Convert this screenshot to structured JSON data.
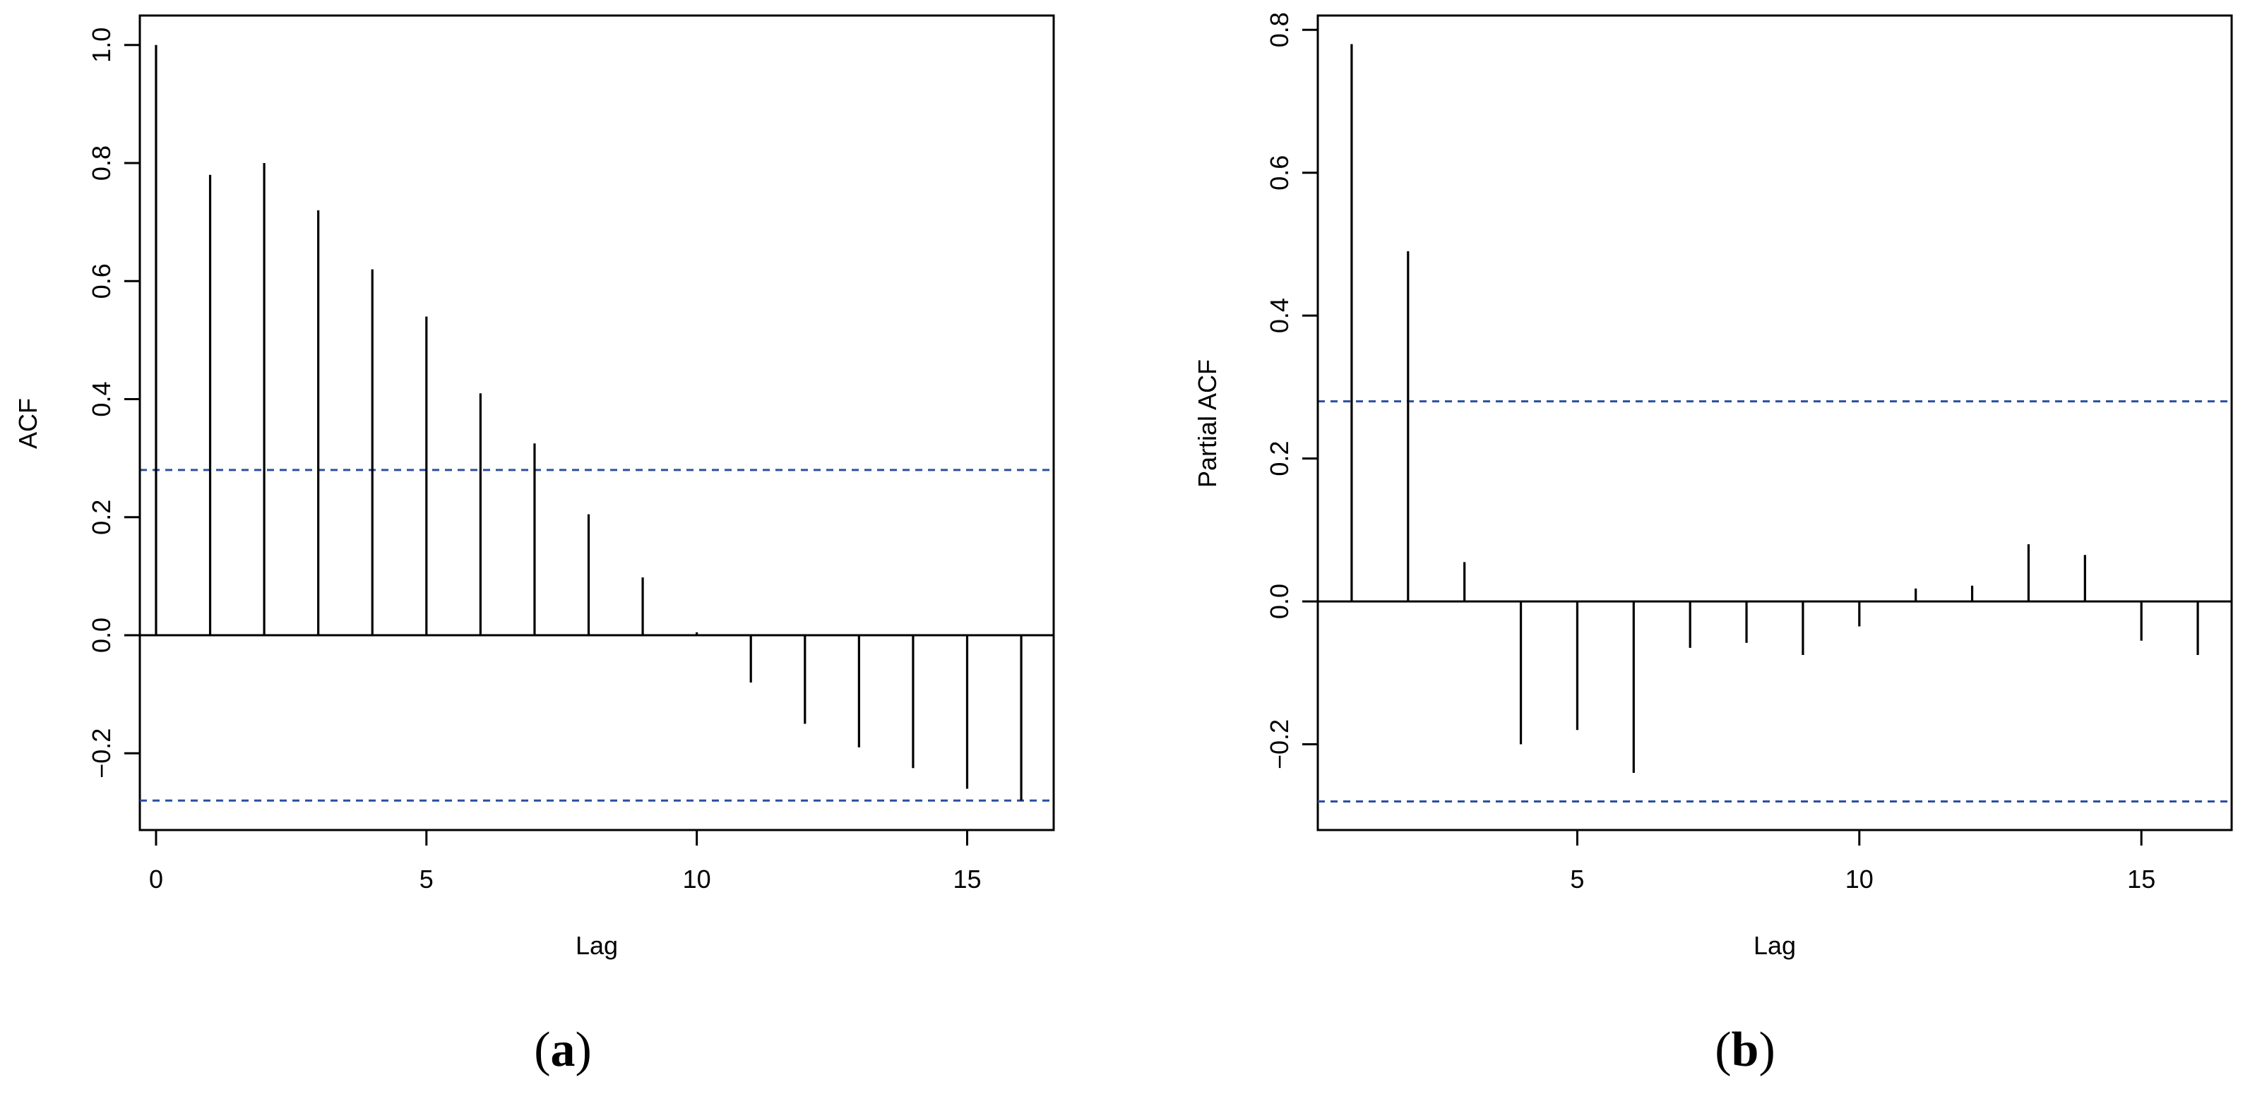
{
  "chart_data": [
    {
      "type": "bar",
      "panel_label": [
        "(",
        "a",
        ")"
      ],
      "xlabel": "Lag",
      "ylabel": "ACF",
      "xlim": [
        -0.3,
        16.6
      ],
      "ylim": [
        -0.33,
        1.05
      ],
      "xticks": [
        0,
        5,
        10,
        15
      ],
      "yticks": [
        -0.2,
        0.0,
        0.2,
        0.4,
        0.6,
        0.8,
        1.0
      ],
      "ytick_labels": [
        "−0.2",
        "0.0",
        "0.2",
        "0.4",
        "0.6",
        "0.8",
        "1.0"
      ],
      "lags": [
        0,
        1,
        2,
        3,
        4,
        5,
        6,
        7,
        8,
        9,
        10,
        11,
        12,
        13,
        14,
        15,
        16
      ],
      "values": [
        1.0,
        0.78,
        0.8,
        0.72,
        0.62,
        0.54,
        0.41,
        0.325,
        0.205,
        0.098,
        0.005,
        -0.08,
        -0.15,
        -0.19,
        -0.225,
        -0.26,
        -0.28
      ],
      "confidence_bounds": [
        0.28,
        -0.28
      ],
      "confidence_color": "#2b4fa0"
    },
    {
      "type": "bar",
      "panel_label": [
        "(",
        "b",
        ")"
      ],
      "xlabel": "Lag",
      "ylabel": "Partial ACF",
      "xlim": [
        0.4,
        16.6
      ],
      "ylim": [
        -0.32,
        0.82
      ],
      "xticks": [
        5,
        10,
        15
      ],
      "yticks": [
        -0.2,
        0.0,
        0.2,
        0.4,
        0.6,
        0.8
      ],
      "ytick_labels": [
        "−0.2",
        "0.0",
        "0.2",
        "0.4",
        "0.6",
        "0.8"
      ],
      "lags": [
        1,
        2,
        3,
        4,
        5,
        6,
        7,
        8,
        9,
        10,
        11,
        12,
        13,
        14,
        15,
        16
      ],
      "values": [
        0.78,
        0.49,
        0.055,
        -0.2,
        -0.18,
        -0.24,
        -0.065,
        -0.058,
        -0.075,
        -0.035,
        0.018,
        0.022,
        0.08,
        0.065,
        -0.055,
        -0.075
      ],
      "confidence_bounds": [
        0.28,
        -0.28
      ],
      "confidence_color": "#2b4fa0"
    }
  ]
}
